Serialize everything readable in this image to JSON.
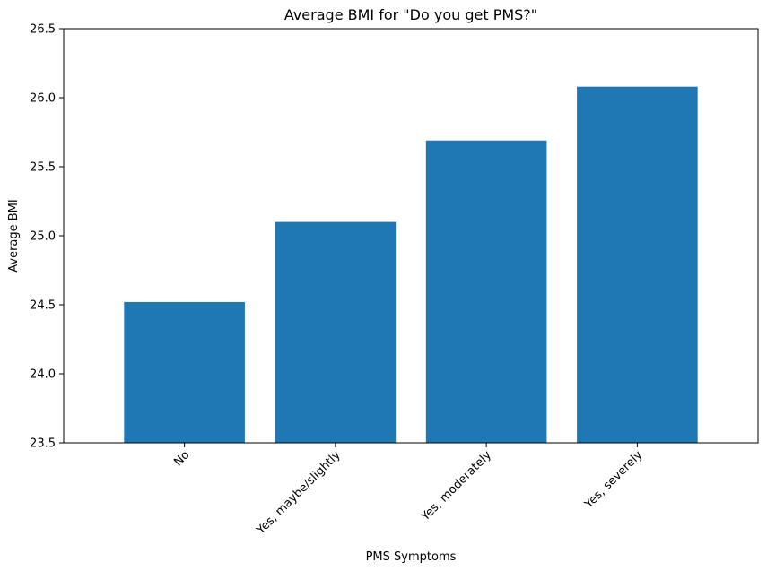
{
  "chart_data": {
    "type": "bar",
    "title": "Average BMI for \"Do you get PMS?\"",
    "xlabel": "PMS Symptoms",
    "ylabel": "Average BMI",
    "categories": [
      "No",
      "Yes, maybe/slightly",
      "Yes, moderately",
      "Yes, severely"
    ],
    "values": [
      24.52,
      25.1,
      25.69,
      26.08
    ],
    "ylim": [
      23.5,
      26.5
    ],
    "yticks": [
      23.5,
      24.0,
      24.5,
      25.0,
      25.5,
      26.0,
      26.5
    ],
    "ytick_labels": [
      "23.5",
      "24.0",
      "24.5",
      "25.0",
      "25.5",
      "26.0",
      "26.5"
    ],
    "bar_color": "#1f77b4",
    "grid": false,
    "legend": "none"
  }
}
